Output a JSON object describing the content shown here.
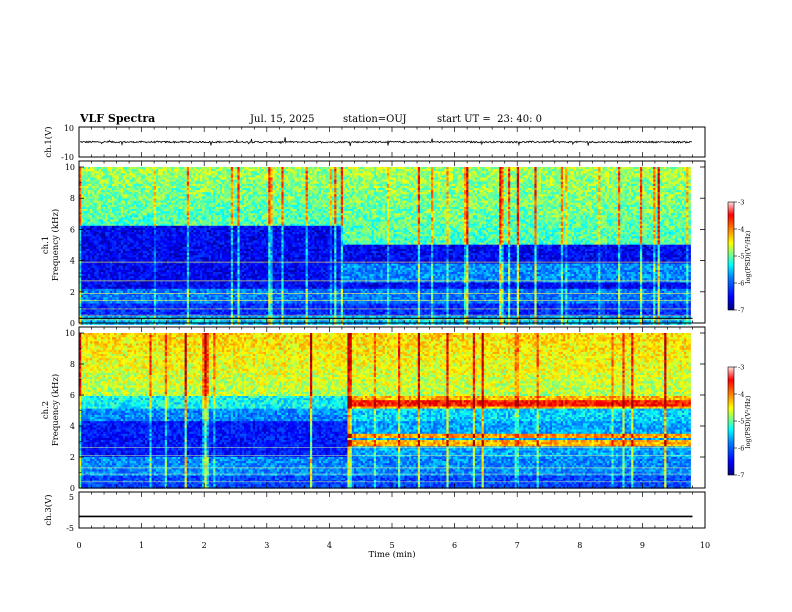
{
  "header": {
    "title": "VLF Spectra",
    "date": "Jul. 15, 2025",
    "station": "station=OUJ",
    "start_ut": "start UT =  23: 40: 0"
  },
  "colors": {
    "colormap": [
      "#00007f",
      "#0000ff",
      "#0080ff",
      "#00ffff",
      "#7fff7f",
      "#ffff00",
      "#ff8000",
      "#ff0000",
      "#7f0000"
    ]
  },
  "chart_data": [
    {
      "type": "line",
      "panel": "ch1-waveform",
      "ylabel": "ch.1(V)",
      "ytick_labels": [
        "10",
        "-10"
      ],
      "ylim": [
        -10,
        10
      ],
      "x": [
        0,
        9.8
      ],
      "trace_level": 0,
      "note_values": "noisy broadband trace around 0 V with spikes up to about ±3 V"
    },
    {
      "type": "heatmap",
      "panel": "ch1-spectrogram",
      "ylabel_1": "ch.1",
      "ylabel_2": "Frequency (kHz)",
      "ylim": [
        0,
        10
      ],
      "yticks": [
        0,
        2,
        4,
        6,
        8,
        10
      ],
      "xlim": [
        0,
        10
      ],
      "data_end_min": 9.8,
      "colorbar": {
        "ticks": [
          "-3",
          "-4",
          "-5",
          "-6",
          "-7"
        ],
        "label": "log(PSD)(V²/Hz)"
      },
      "bands_kHz": [
        {
          "from_min": 0,
          "to_min": 4.2,
          "low": 1.2,
          "mid": 2.2,
          "upper": 6.2
        },
        {
          "from_min": 4.2,
          "to_min": 9.8,
          "low": 1.2,
          "mid": 2.6,
          "upper": 5.0
        }
      ]
    },
    {
      "type": "heatmap",
      "panel": "ch2-spectrogram",
      "ylabel_1": "ch.2",
      "ylabel_2": "Frequency (kHz)",
      "ylim": [
        0,
        10
      ],
      "yticks": [
        0,
        2,
        4,
        6,
        8,
        10
      ],
      "xlim": [
        0,
        10
      ],
      "data_end_min": 9.8,
      "colorbar": {
        "ticks": [
          "-3",
          "-4",
          "-5",
          "-6",
          "-7"
        ],
        "label": "log(PSD)(V²/Hz)"
      },
      "emission_lines_kHz": [
        {
          "from_min": 4.3,
          "to_min": 9.8,
          "freq": 5.4,
          "level": "red"
        },
        {
          "from_min": 4.3,
          "to_min": 9.8,
          "freq": 5.7,
          "level": "orange"
        },
        {
          "from_min": 4.3,
          "to_min": 9.8,
          "freq": 3.4,
          "level": "orange"
        },
        {
          "from_min": 4.3,
          "to_min": 9.8,
          "freq": 2.9,
          "level": "orange"
        }
      ]
    },
    {
      "type": "line",
      "panel": "ch3-waveform",
      "ylabel": "ch.3(V)",
      "ytick_labels": [
        "5",
        "-5"
      ],
      "ylim": [
        -5,
        5
      ],
      "x": [
        0,
        9.8
      ],
      "trace_level": -1.8
    }
  ],
  "xaxis": {
    "label": "Time (min)",
    "ticks": [
      "0",
      "1",
      "2",
      "3",
      "4",
      "5",
      "6",
      "7",
      "8",
      "9",
      "10"
    ]
  }
}
